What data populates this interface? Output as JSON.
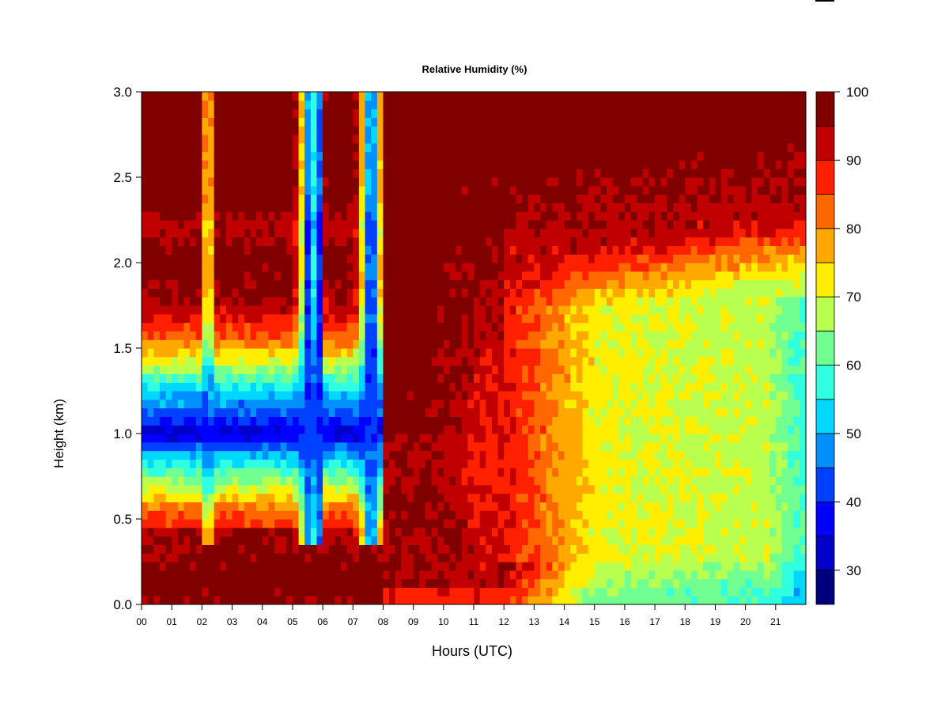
{
  "chart_data": {
    "type": "heatmap",
    "title": "Relative Humidity (%)",
    "xlabel": "Hours (UTC)",
    "ylabel": "Height (km)",
    "xlim": [
      0,
      22
    ],
    "ylim": [
      0.0,
      3.0
    ],
    "x_ticks": [
      "00",
      "01",
      "02",
      "03",
      "04",
      "05",
      "06",
      "07",
      "08",
      "09",
      "10",
      "11",
      "12",
      "13",
      "14",
      "15",
      "16",
      "17",
      "18",
      "19",
      "20",
      "21"
    ],
    "y_ticks": [
      "0.0",
      "0.5",
      "1.0",
      "1.5",
      "2.0",
      "2.5",
      "3.0"
    ],
    "colorbar": {
      "range": [
        25,
        100
      ],
      "step": 5,
      "tick_labels": [
        "30",
        "40",
        "50",
        "60",
        "70",
        "80",
        "90",
        "100"
      ],
      "colors": [
        "#00007f",
        "#0000c8",
        "#0000ff",
        "#0040ff",
        "#0090ff",
        "#00d8ff",
        "#30ffe0",
        "#70ff90",
        "#b8ff50",
        "#ffee00",
        "#ffa800",
        "#ff6800",
        "#ff2000",
        "#c00000",
        "#800000"
      ]
    },
    "description_of_field": {
      "hours_00_08": "Low humidity layer (30-60%) between about 0.5 and 1.5 km, with saturated (>95%) air above 1.5-2.0 km and near the surface; narrow dry columns near 02, 05.5-06 and 07.5 UTC extend to 3 km.",
      "hours_08_12": "Mostly 85-100% throughout the column.",
      "hours_12_22": "Mid-level values decrease to 70-80% between 0.3 and 2 km, 90-100% above 2.2 km, 60-70% near the surface."
    }
  }
}
